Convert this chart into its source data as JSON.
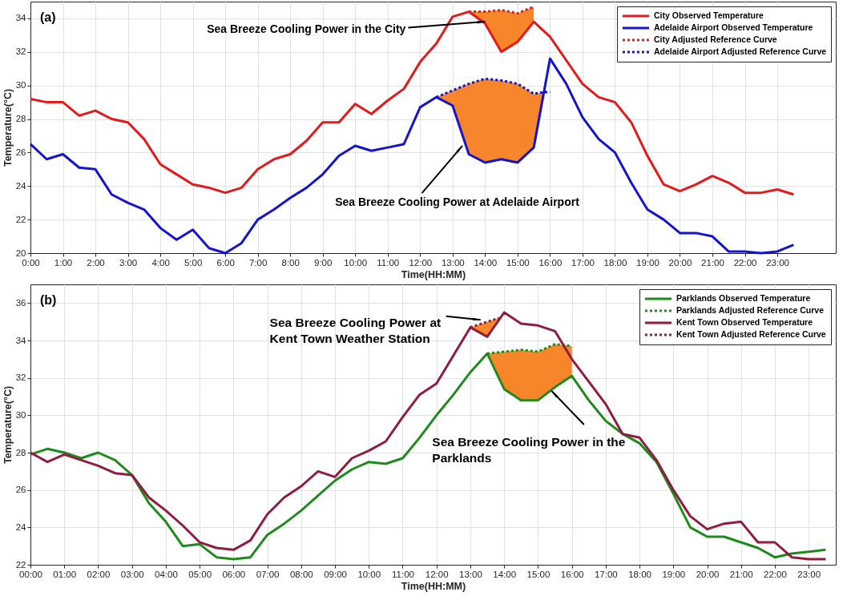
{
  "chart_data": [
    {
      "type": "line",
      "title": "(a)",
      "xlabel": "Time(HH:MM)",
      "ylabel": "Temperature(°C)",
      "x": [
        0,
        0.5,
        1,
        1.5,
        2,
        2.5,
        3,
        3.5,
        4,
        4.5,
        5,
        5.5,
        6,
        6.5,
        7,
        7.5,
        8,
        8.5,
        9,
        9.5,
        10,
        10.5,
        11,
        11.5,
        12,
        12.5,
        13,
        13.5,
        14,
        14.5,
        15,
        15.5,
        16,
        16.5,
        17,
        17.5,
        18,
        18.5,
        19,
        19.5,
        20,
        20.5,
        21,
        21.5,
        22,
        22.5,
        23,
        23.5
      ],
      "xlim": [
        0,
        24.8
      ],
      "xticks": [
        {
          "value": 0,
          "label": "0:00"
        },
        {
          "value": 1,
          "label": "1:00"
        },
        {
          "value": 2,
          "label": "2:00"
        },
        {
          "value": 3,
          "label": "3:00"
        },
        {
          "value": 4,
          "label": "4:00"
        },
        {
          "value": 5,
          "label": "5:00"
        },
        {
          "value": 6,
          "label": "6:00"
        },
        {
          "value": 7,
          "label": "7:00"
        },
        {
          "value": 8,
          "label": "8:00"
        },
        {
          "value": 9,
          "label": "9:00"
        },
        {
          "value": 10,
          "label": "10:00"
        },
        {
          "value": 11,
          "label": "11:00"
        },
        {
          "value": 12,
          "label": "12:00"
        },
        {
          "value": 13,
          "label": "13:00"
        },
        {
          "value": 14,
          "label": "14:00"
        },
        {
          "value": 15,
          "label": "15:00"
        },
        {
          "value": 16,
          "label": "16:00"
        },
        {
          "value": 17,
          "label": "17:00"
        },
        {
          "value": 18,
          "label": "18:00"
        },
        {
          "value": 19,
          "label": "19:00"
        },
        {
          "value": 20,
          "label": "20:00"
        },
        {
          "value": 21,
          "label": "21:00"
        },
        {
          "value": 22,
          "label": "22:00"
        },
        {
          "value": 23,
          "label": "23:00"
        }
      ],
      "ylim": [
        20,
        35
      ],
      "yticks": [
        20,
        22,
        24,
        26,
        28,
        30,
        32,
        34
      ],
      "grid": true,
      "legend": "top right",
      "series": [
        {
          "name": "City Observed Temperature",
          "color": "#e31a1c",
          "line_style": "solid",
          "values": [
            29.2,
            29.0,
            29.0,
            28.2,
            28.5,
            28.0,
            27.8,
            26.8,
            25.3,
            24.7,
            24.1,
            23.9,
            23.6,
            23.9,
            25.0,
            25.6,
            25.9,
            26.7,
            27.8,
            27.8,
            28.9,
            28.3,
            29.1,
            29.8,
            31.4,
            32.5,
            34.1,
            34.4,
            33.7,
            32.0,
            32.6,
            33.8,
            32.9,
            31.5,
            30.1,
            29.3,
            29.0,
            27.8,
            25.8,
            24.1,
            23.7,
            24.1,
            24.6,
            24.2,
            23.6,
            23.6,
            23.8,
            23.5
          ]
        },
        {
          "name": "Adelaide Airport Observed Temperature",
          "color": "#1414cc",
          "line_style": "solid",
          "values": [
            26.5,
            25.6,
            25.9,
            25.1,
            25.0,
            23.5,
            23.0,
            22.6,
            21.5,
            20.8,
            21.4,
            20.3,
            20.0,
            20.6,
            22.0,
            22.6,
            23.3,
            23.9,
            24.7,
            25.8,
            26.4,
            26.1,
            26.3,
            26.5,
            28.7,
            29.3,
            28.8,
            25.9,
            25.4,
            25.6,
            25.4,
            26.3,
            31.6,
            30.1,
            28.1,
            26.8,
            26.0,
            24.2,
            22.6,
            22.0,
            21.2,
            21.2,
            21.0,
            20.1,
            20.1,
            20.0,
            20.1,
            20.5
          ]
        },
        {
          "name": "City Adjusted Reference Curve",
          "color": "#e31a1c",
          "line_style": "dotted",
          "x": [
            13.5,
            14,
            14.5,
            15,
            15.5
          ],
          "values": [
            34.4,
            34.4,
            34.5,
            34.3,
            34.7
          ],
          "lower": [
            34.4,
            33.7,
            32.0,
            32.6,
            33.8
          ],
          "upper": [
            34.4,
            34.4,
            34.5,
            34.3,
            34.7
          ]
        },
        {
          "name": "Adelaide Airport Adjusted Reference Curve",
          "color": "#1414cc",
          "line_style": "dotted",
          "x": [
            12.5,
            13,
            13.5,
            14,
            14.5,
            15,
            15.5,
            15.8,
            16
          ],
          "values": [
            29.3,
            29.7,
            30.1,
            30.4,
            30.3,
            30.1,
            29.5,
            29.6,
            29.6
          ],
          "lower": [
            29.3,
            28.8,
            25.9,
            25.4,
            25.6,
            25.4,
            26.3,
            29.6,
            29.6
          ],
          "upper": [
            29.3,
            29.7,
            30.1,
            30.4,
            30.3,
            30.1,
            29.5,
            29.6,
            29.6
          ]
        }
      ],
      "annotations": [
        {
          "text": "Sea Breeze Cooling Power in the City",
          "x": 14.0,
          "y": 33.8
        },
        {
          "text": "Sea Breeze Cooling Power at  Adelaide Airport",
          "x": 13.3,
          "y": 26.4
        }
      ]
    },
    {
      "type": "line",
      "title": "(b)",
      "xlabel": "Time(HH:MM)",
      "ylabel": "Temperature(°C)",
      "x": [
        0,
        0.5,
        1,
        1.5,
        2,
        2.5,
        3,
        3.5,
        4,
        4.5,
        5,
        5.5,
        6,
        6.5,
        7,
        7.5,
        8,
        8.5,
        9,
        9.5,
        10,
        10.5,
        11,
        11.5,
        12,
        12.5,
        13,
        13.5,
        14,
        14.5,
        15,
        15.5,
        16,
        16.5,
        17,
        17.5,
        18,
        18.5,
        19,
        19.5,
        20,
        20.5,
        21,
        21.5,
        22,
        22.5,
        23,
        23.5
      ],
      "xlim": [
        0,
        23.8
      ],
      "xticks": [
        {
          "value": 0,
          "label": "00:00"
        },
        {
          "value": 1,
          "label": "01:00"
        },
        {
          "value": 2,
          "label": "02:00"
        },
        {
          "value": 3,
          "label": "03:00"
        },
        {
          "value": 4,
          "label": "04:00"
        },
        {
          "value": 5,
          "label": "05:00"
        },
        {
          "value": 6,
          "label": "06:00"
        },
        {
          "value": 7,
          "label": "07:00"
        },
        {
          "value": 8,
          "label": "08:00"
        },
        {
          "value": 9,
          "label": "09:00"
        },
        {
          "value": 10,
          "label": "10:00"
        },
        {
          "value": 11,
          "label": "11:00"
        },
        {
          "value": 12,
          "label": "12:00"
        },
        {
          "value": 13,
          "label": "13:00"
        },
        {
          "value": 14,
          "label": "14:00"
        },
        {
          "value": 15,
          "label": "15:00"
        },
        {
          "value": 16,
          "label": "16:00"
        },
        {
          "value": 17,
          "label": "17:00"
        },
        {
          "value": 18,
          "label": "18:00"
        },
        {
          "value": 19,
          "label": "19:00"
        },
        {
          "value": 20,
          "label": "20:00"
        },
        {
          "value": 21,
          "label": "21:00"
        },
        {
          "value": 22,
          "label": "22:00"
        },
        {
          "value": 23,
          "label": "23:00"
        }
      ],
      "ylim": [
        22,
        37
      ],
      "yticks": [
        22,
        24,
        26,
        28,
        30,
        32,
        34,
        36
      ],
      "grid": true,
      "legend": "top right",
      "series": [
        {
          "name": "Parklands Observed Temperature",
          "color": "#1e8a1e",
          "line_style": "solid",
          "values": [
            27.9,
            28.2,
            28.0,
            27.7,
            28.0,
            27.6,
            26.8,
            25.3,
            24.3,
            23.0,
            23.1,
            22.4,
            22.3,
            22.4,
            23.6,
            24.2,
            24.9,
            25.7,
            26.5,
            27.1,
            27.5,
            27.4,
            27.7,
            28.8,
            30.0,
            31.1,
            32.3,
            33.3,
            31.4,
            30.8,
            30.8,
            31.5,
            32.1,
            30.8,
            29.7,
            29.0,
            28.5,
            27.5,
            25.8,
            24.0,
            23.5,
            23.5,
            23.2,
            22.9,
            22.4,
            22.6,
            22.7,
            22.8
          ]
        },
        {
          "name": "Parklands Adjusted Reference Curve",
          "color": "#1e8a1e",
          "line_style": "dotted",
          "x": [
            13.5,
            14,
            14.5,
            15,
            15.5,
            16
          ],
          "values": [
            33.3,
            33.4,
            33.5,
            33.4,
            33.8,
            33.7
          ],
          "lower": [
            33.3,
            31.4,
            30.8,
            30.8,
            31.5,
            32.1
          ],
          "upper": [
            33.3,
            33.4,
            33.5,
            33.4,
            33.8,
            33.7
          ]
        },
        {
          "name": "Kent Town Observed Temperature",
          "color": "#8f1d3f",
          "line_style": "solid",
          "values": [
            28.0,
            27.5,
            27.9,
            27.6,
            27.3,
            26.9,
            26.8,
            25.6,
            24.9,
            24.1,
            23.2,
            22.9,
            22.8,
            23.3,
            24.7,
            25.6,
            26.2,
            27.0,
            26.7,
            27.7,
            28.1,
            28.6,
            29.9,
            31.1,
            31.7,
            33.2,
            34.7,
            34.2,
            35.5,
            34.9,
            34.8,
            34.5,
            33.0,
            31.8,
            30.6,
            29.0,
            28.8,
            27.6,
            26.0,
            24.6,
            23.9,
            24.2,
            24.3,
            23.2,
            23.2,
            22.4,
            22.3,
            22.3
          ]
        },
        {
          "name": "Kent Town Adjusted Reference Curve",
          "color": "#8f1d3f",
          "line_style": "dotted",
          "x": [
            13,
            13.5,
            13.85
          ],
          "values": [
            34.7,
            35.0,
            35.2
          ],
          "lower": [
            34.7,
            34.2,
            35.2
          ],
          "upper": [
            34.7,
            35.0,
            35.2
          ]
        }
      ],
      "annotations": [
        {
          "text": "Sea Breeze Cooling Power at\nKent Town Weather Station",
          "x": 13.3,
          "y": 35.1
        },
        {
          "text": "Sea Breeze Cooling Power in the\nParklands",
          "x": 15.4,
          "y": 31.3
        }
      ]
    }
  ]
}
